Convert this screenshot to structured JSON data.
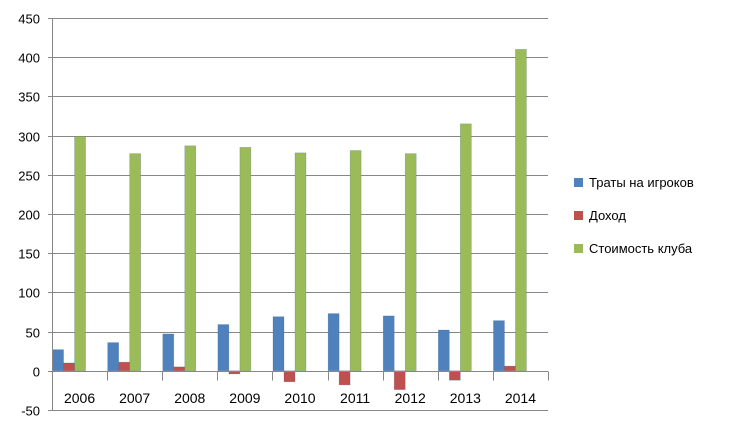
{
  "chart_data": {
    "type": "bar",
    "categories": [
      "2006",
      "2007",
      "2008",
      "2009",
      "2010",
      "2011",
      "2012",
      "2013",
      "2014"
    ],
    "series": [
      {
        "name": "Траты на игроков",
        "color": "#4f81bd",
        "values": [
          27,
          36,
          47,
          59,
          69,
          73,
          70,
          52,
          64
        ]
      },
      {
        "name": "Доход",
        "color": "#c0504d",
        "values": [
          10,
          11,
          5,
          -4,
          -14,
          -18,
          -24,
          -12,
          6
        ]
      },
      {
        "name": "Стоимость клуба",
        "color": "#9bbb59",
        "values": [
          299,
          277,
          287,
          285,
          278,
          281,
          277,
          315,
          410
        ]
      }
    ],
    "yticks": [
      "-50",
      "0",
      "50",
      "100",
      "150",
      "200",
      "250",
      "300",
      "350",
      "400",
      "450"
    ],
    "ylim": [
      -50,
      450
    ],
    "grid": true,
    "legend_position": "right",
    "title": "",
    "xlabel": "",
    "ylabel": ""
  }
}
